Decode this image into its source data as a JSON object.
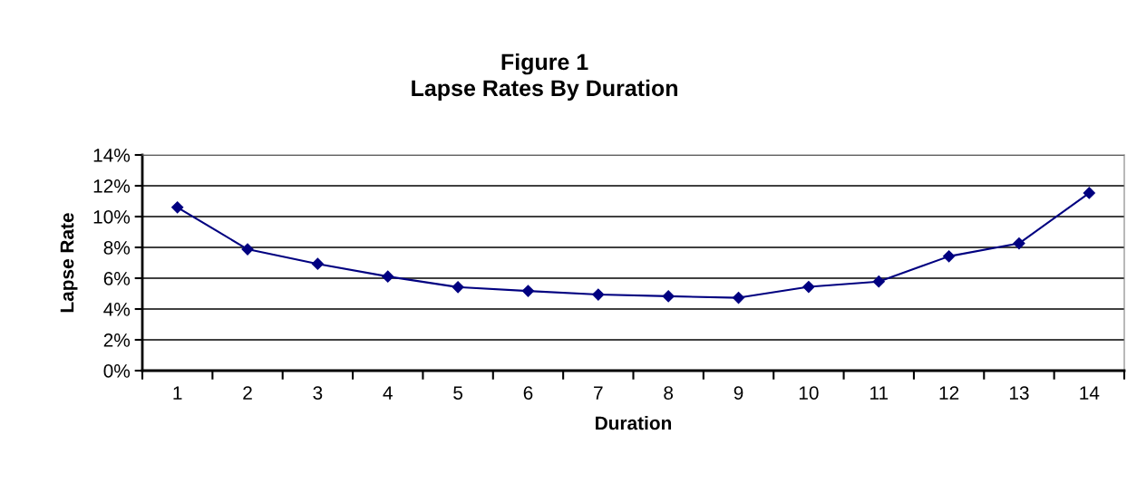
{
  "chart_data": {
    "type": "line",
    "title": "Figure 1\nLapse Rates By Duration",
    "xlabel": "Duration",
    "ylabel": "Lapse Rate",
    "categories": [
      "1",
      "2",
      "3",
      "4",
      "5",
      "6",
      "7",
      "8",
      "9",
      "10",
      "11",
      "12",
      "13",
      "14"
    ],
    "series": [
      {
        "color": "#000080",
        "values": [
          10.6,
          7.88,
          6.93,
          6.11,
          5.42,
          5.17,
          4.94,
          4.83,
          4.73,
          5.44,
          5.78,
          7.42,
          8.26,
          11.53
        ]
      }
    ],
    "ylim": [
      0,
      14
    ],
    "yticks": [
      {
        "value": 0,
        "label": "0%"
      },
      {
        "value": 2,
        "label": "2%"
      },
      {
        "value": 4,
        "label": "4%"
      },
      {
        "value": 6,
        "label": "6%"
      },
      {
        "value": 8,
        "label": "8%"
      },
      {
        "value": 10,
        "label": "10%"
      },
      {
        "value": 12,
        "label": "12%"
      },
      {
        "value": 14,
        "label": "14%"
      }
    ],
    "grid": "y",
    "marker": "diamond",
    "line_style": "solid"
  }
}
